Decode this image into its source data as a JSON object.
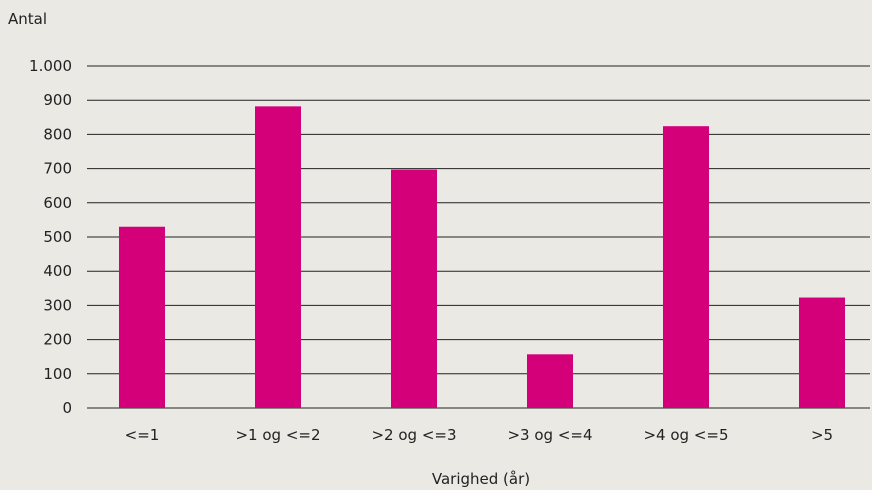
{
  "chart_data": {
    "type": "bar",
    "ylabel": "Antal",
    "xlabel": "Varighed (år)",
    "categories": [
      "<=1",
      ">1 og <=2",
      ">2 og <=3",
      ">3 og <=4",
      ">4 og <=5",
      ">5"
    ],
    "values": [
      530,
      882,
      697,
      157,
      824,
      323
    ],
    "ylim": [
      0,
      1000
    ],
    "yticks": [
      0,
      100,
      200,
      300,
      400,
      500,
      600,
      700,
      800,
      900,
      1000
    ],
    "ytick_labels": [
      "0",
      "100",
      "200",
      "300",
      "400",
      "500",
      "600",
      "700",
      "800",
      "900",
      "1.000"
    ],
    "grid": true,
    "legend": "none",
    "bar_color": "#d4007a"
  }
}
